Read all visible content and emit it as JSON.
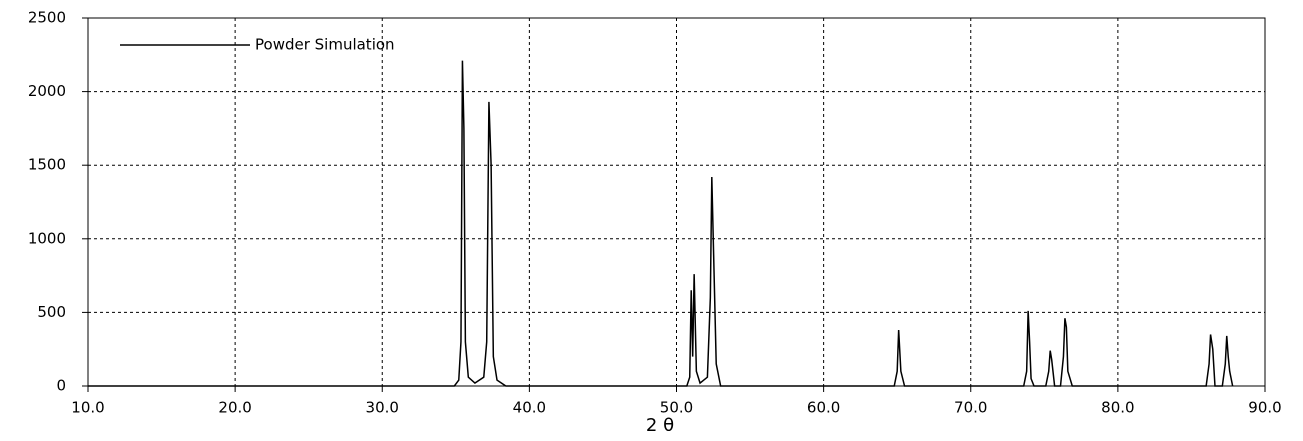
{
  "chart_data": {
    "type": "line",
    "x_label": "2 θ",
    "x": [
      10,
      34.9,
      35.2,
      35.35,
      35.45,
      35.55,
      35.65,
      35.85,
      36.3,
      36.9,
      37.1,
      37.25,
      37.4,
      37.55,
      37.8,
      38.4,
      50.7,
      50.9,
      51.0,
      51.1,
      51.2,
      51.35,
      51.6,
      52.1,
      52.3,
      52.4,
      52.55,
      52.7,
      53.0,
      64.8,
      65.0,
      65.1,
      65.25,
      65.5,
      73.6,
      73.8,
      73.9,
      74.0,
      74.1,
      74.3,
      75.1,
      75.3,
      75.4,
      75.5,
      75.7,
      76.1,
      76.3,
      76.4,
      76.5,
      76.6,
      76.9,
      86.0,
      86.2,
      86.3,
      86.45,
      86.6,
      87.1,
      87.3,
      87.4,
      87.5,
      87.6,
      87.8
    ],
    "series": [
      {
        "name": "Powder Simulation",
        "color": "#000000",
        "values": [
          0,
          0,
          40,
          300,
          2210,
          1750,
          300,
          60,
          20,
          60,
          300,
          1930,
          1500,
          200,
          40,
          0,
          0,
          60,
          650,
          200,
          760,
          100,
          20,
          60,
          600,
          1420,
          780,
          150,
          0,
          0,
          100,
          380,
          100,
          0,
          0,
          100,
          510,
          300,
          50,
          0,
          0,
          100,
          240,
          180,
          0,
          0,
          200,
          460,
          400,
          100,
          0,
          0,
          150,
          350,
          250,
          0,
          0,
          150,
          340,
          200,
          100,
          0
        ]
      }
    ],
    "xlim": [
      10,
      90
    ],
    "xticks": [
      {
        "value": 10,
        "label": "10.0"
      },
      {
        "value": 20,
        "label": "20.0"
      },
      {
        "value": 30,
        "label": "30.0"
      },
      {
        "value": 40,
        "label": "40.0"
      },
      {
        "value": 50,
        "label": "50.0"
      },
      {
        "value": 60,
        "label": "60.0"
      },
      {
        "value": 70,
        "label": "70.0"
      },
      {
        "value": 80,
        "label": "80.0"
      },
      {
        "value": 90,
        "label": "90.0"
      }
    ],
    "ylim": [
      0,
      2500
    ],
    "yticks": [
      0,
      500,
      1000,
      1500,
      2000,
      2500
    ],
    "grid": true,
    "legend": "top-left"
  }
}
